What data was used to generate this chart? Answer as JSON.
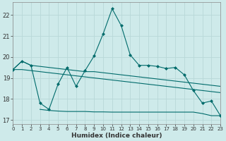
{
  "title": "",
  "xlabel": "Humidex (Indice chaleur)",
  "ylabel": "",
  "background_color": "#ceeaea",
  "grid_color": "#b8d8d8",
  "line_color": "#006b6b",
  "xlim": [
    0,
    23
  ],
  "ylim": [
    16.8,
    22.6
  ],
  "xticks": [
    0,
    1,
    2,
    3,
    4,
    5,
    6,
    7,
    8,
    9,
    10,
    11,
    12,
    13,
    14,
    15,
    16,
    17,
    18,
    19,
    20,
    21,
    22,
    23
  ],
  "yticks": [
    17,
    18,
    19,
    20,
    21,
    22
  ],
  "line1_x": [
    0,
    1,
    2,
    3,
    4,
    5,
    6,
    7,
    8,
    9,
    10,
    11,
    12,
    13,
    14,
    15,
    16,
    17,
    18,
    19,
    20,
    21,
    22,
    23
  ],
  "line1_y": [
    19.4,
    19.8,
    19.6,
    17.8,
    17.5,
    18.7,
    19.5,
    18.6,
    19.35,
    20.05,
    21.1,
    22.3,
    21.5,
    20.1,
    19.6,
    19.6,
    19.55,
    19.45,
    19.5,
    19.15,
    18.4,
    17.8,
    17.9,
    17.2
  ],
  "line2_x": [
    0,
    1,
    2,
    3,
    4,
    5,
    6,
    7,
    8,
    9,
    10,
    11,
    12,
    13,
    14,
    15,
    16,
    17,
    18,
    19,
    20,
    21,
    22,
    23
  ],
  "line2_y": [
    19.4,
    19.8,
    19.6,
    19.55,
    19.5,
    19.45,
    19.4,
    19.35,
    19.3,
    19.3,
    19.25,
    19.2,
    19.15,
    19.1,
    19.05,
    19.0,
    18.95,
    18.9,
    18.85,
    18.8,
    18.75,
    18.7,
    18.65,
    18.6
  ],
  "line3_x": [
    0,
    1,
    2,
    3,
    4,
    5,
    6,
    7,
    8,
    9,
    10,
    11,
    12,
    13,
    14,
    15,
    16,
    17,
    18,
    19,
    20,
    21,
    22,
    23
  ],
  "line3_y": [
    19.4,
    19.4,
    19.35,
    19.3,
    19.25,
    19.2,
    19.15,
    19.1,
    19.05,
    19.0,
    18.95,
    18.9,
    18.85,
    18.8,
    18.75,
    18.7,
    18.65,
    18.6,
    18.55,
    18.5,
    18.45,
    18.4,
    18.35,
    18.3
  ],
  "line4_x": [
    3,
    4,
    5,
    6,
    7,
    8,
    9,
    10,
    11,
    12,
    13,
    14,
    15,
    16,
    17,
    18,
    19,
    20,
    21,
    22,
    23
  ],
  "line4_y": [
    17.5,
    17.45,
    17.42,
    17.4,
    17.4,
    17.4,
    17.38,
    17.38,
    17.37,
    17.37,
    17.37,
    17.37,
    17.37,
    17.37,
    17.37,
    17.37,
    17.37,
    17.37,
    17.3,
    17.2,
    17.2
  ]
}
